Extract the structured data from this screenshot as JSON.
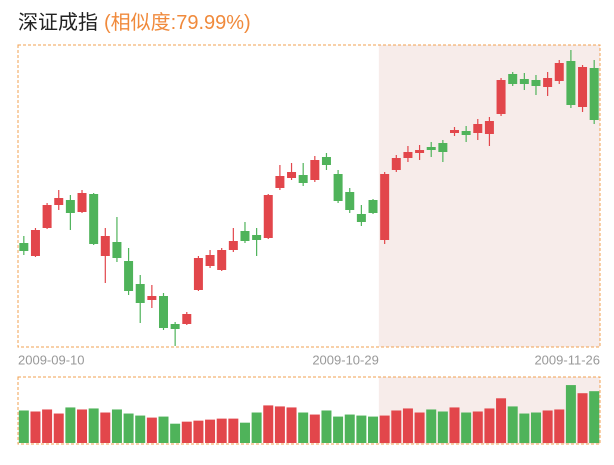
{
  "chart_data": {
    "type": "candlestick",
    "title": "深证成指",
    "subtitle": "(相似度:79.99%)",
    "categories": [
      "2009-09-10",
      null,
      null,
      null,
      null,
      null,
      null,
      null,
      null,
      null,
      null,
      null,
      null,
      null,
      null,
      null,
      null,
      null,
      null,
      null,
      null,
      null,
      null,
      null,
      null,
      null,
      null,
      null,
      null,
      null,
      "2009-10-29",
      null,
      null,
      null,
      null,
      null,
      null,
      null,
      null,
      null,
      null,
      null,
      null,
      null,
      null,
      null,
      null,
      null,
      null,
      "2009-11-26"
    ],
    "open": [
      107,
      94,
      122,
      145,
      150,
      138,
      156,
      94,
      108,
      89,
      66,
      50,
      54,
      26,
      26,
      60,
      84,
      80,
      100,
      119,
      115,
      112,
      162,
      172,
      175,
      170,
      193,
      176,
      158,
      136,
      150,
      110,
      180,
      192,
      197,
      203,
      207,
      217,
      219,
      217,
      216,
      236,
      276,
      271,
      270,
      263,
      269,
      289,
      243,
      282
    ],
    "high": [
      114,
      122,
      147,
      160,
      155,
      160,
      157,
      122,
      133,
      102,
      75,
      65,
      57,
      28,
      38,
      94,
      100,
      102,
      122,
      128,
      122,
      156,
      185,
      187,
      187,
      194,
      197,
      180,
      162,
      145,
      151,
      178,
      195,
      204,
      205,
      208,
      210,
      223,
      224,
      231,
      233,
      272,
      278,
      277,
      275,
      278,
      290,
      300,
      285,
      290
    ],
    "low": [
      95,
      93,
      121,
      140,
      120,
      137,
      105,
      67,
      88,
      55,
      27,
      42,
      20,
      4,
      25,
      59,
      82,
      79,
      98,
      107,
      94,
      111,
      160,
      170,
      164,
      168,
      180,
      147,
      137,
      124,
      136,
      106,
      178,
      188,
      190,
      193,
      188,
      214,
      208,
      210,
      204,
      234,
      264,
      260,
      255,
      254,
      266,
      242,
      238,
      226
    ],
    "close": [
      99,
      120,
      145,
      152,
      137,
      157,
      106,
      114,
      92,
      59,
      47,
      54,
      22,
      21,
      36,
      92,
      95,
      100,
      109,
      109,
      110,
      155,
      174,
      178,
      167,
      190,
      185,
      149,
      140,
      128,
      137,
      176,
      192,
      198,
      200,
      200,
      198,
      220,
      215,
      226,
      229,
      270,
      266,
      266,
      264,
      272,
      287,
      245,
      283,
      230
    ],
    "volume": [
      32,
      31,
      33,
      29,
      35,
      33,
      34,
      30,
      33,
      29,
      27,
      25,
      26,
      19,
      21,
      22,
      23,
      24,
      24,
      20,
      30,
      37,
      36,
      35,
      30,
      28,
      32,
      26,
      28,
      27,
      26,
      27,
      32,
      34,
      30,
      33,
      31,
      35,
      30,
      31,
      34,
      44,
      36,
      29,
      30,
      32,
      33,
      57,
      49,
      51
    ],
    "ylim": [
      5,
      305
    ],
    "volume_lim": [
      0,
      62
    ],
    "up_color": "#e2464b",
    "down_color": "#4fb35a"
  }
}
